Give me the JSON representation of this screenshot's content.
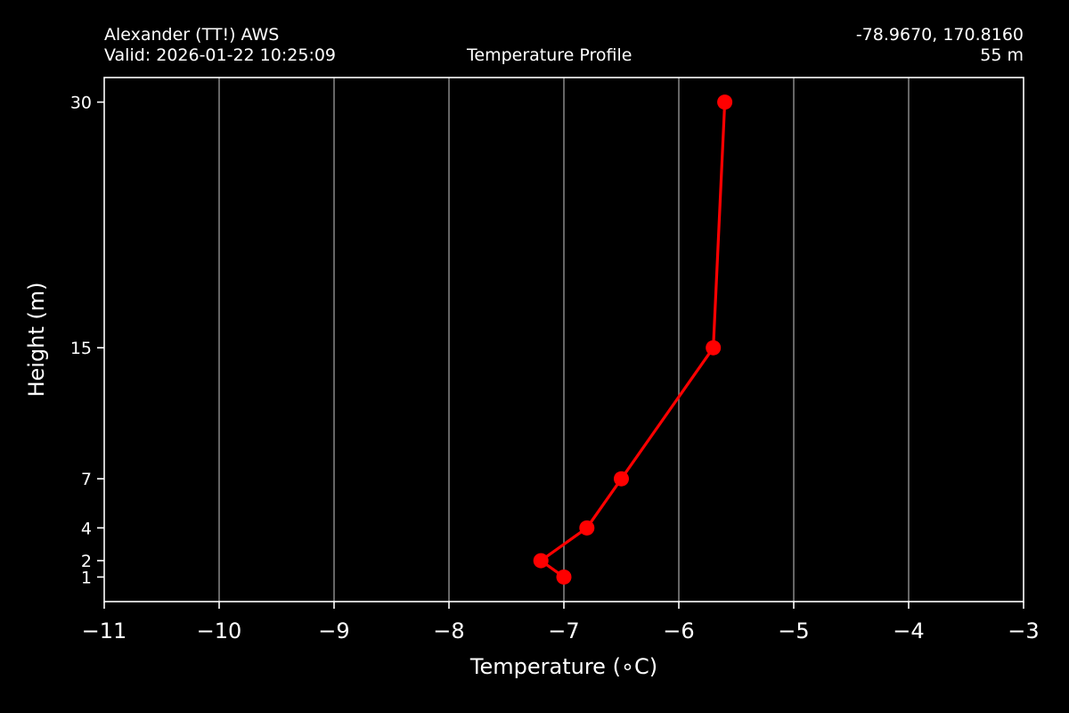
{
  "header": {
    "station": "Alexander (TT!) AWS",
    "valid": "Valid: 2026-01-22 10:25:09",
    "title": "Temperature Profile",
    "coords": "-78.9670, 170.8160",
    "elevation": "55 m"
  },
  "chart_data": {
    "type": "line",
    "title": "Temperature Profile",
    "xlabel": "Temperature (∘C)",
    "ylabel": "Height (m)",
    "xlim": [
      -11,
      -3
    ],
    "ylim": [
      -0.5,
      31.5
    ],
    "xticks": [
      -11,
      -10,
      -9,
      -8,
      -7,
      -6,
      -5,
      -4,
      -3
    ],
    "xtick_labels": [
      "−11",
      "−10",
      "−9",
      "−8",
      "−7",
      "−6",
      "−5",
      "−4",
      "−3"
    ],
    "yticks": [
      1,
      2,
      4,
      7,
      15,
      30
    ],
    "ytick_labels": [
      "1",
      "2",
      "4",
      "7",
      "15",
      "30"
    ],
    "grid": "x",
    "series": [
      {
        "color": "#ff0000",
        "marker": "circle",
        "points": [
          {
            "x": -7.0,
            "y": 1
          },
          {
            "x": -7.2,
            "y": 2
          },
          {
            "x": -6.8,
            "y": 4
          },
          {
            "x": -6.5,
            "y": 7
          },
          {
            "x": -5.7,
            "y": 15
          },
          {
            "x": -5.6,
            "y": 30
          }
        ]
      }
    ],
    "colors": {
      "background": "#000000",
      "axes": "#ffffff",
      "grid": "#808080",
      "line": "#ff0000"
    }
  }
}
